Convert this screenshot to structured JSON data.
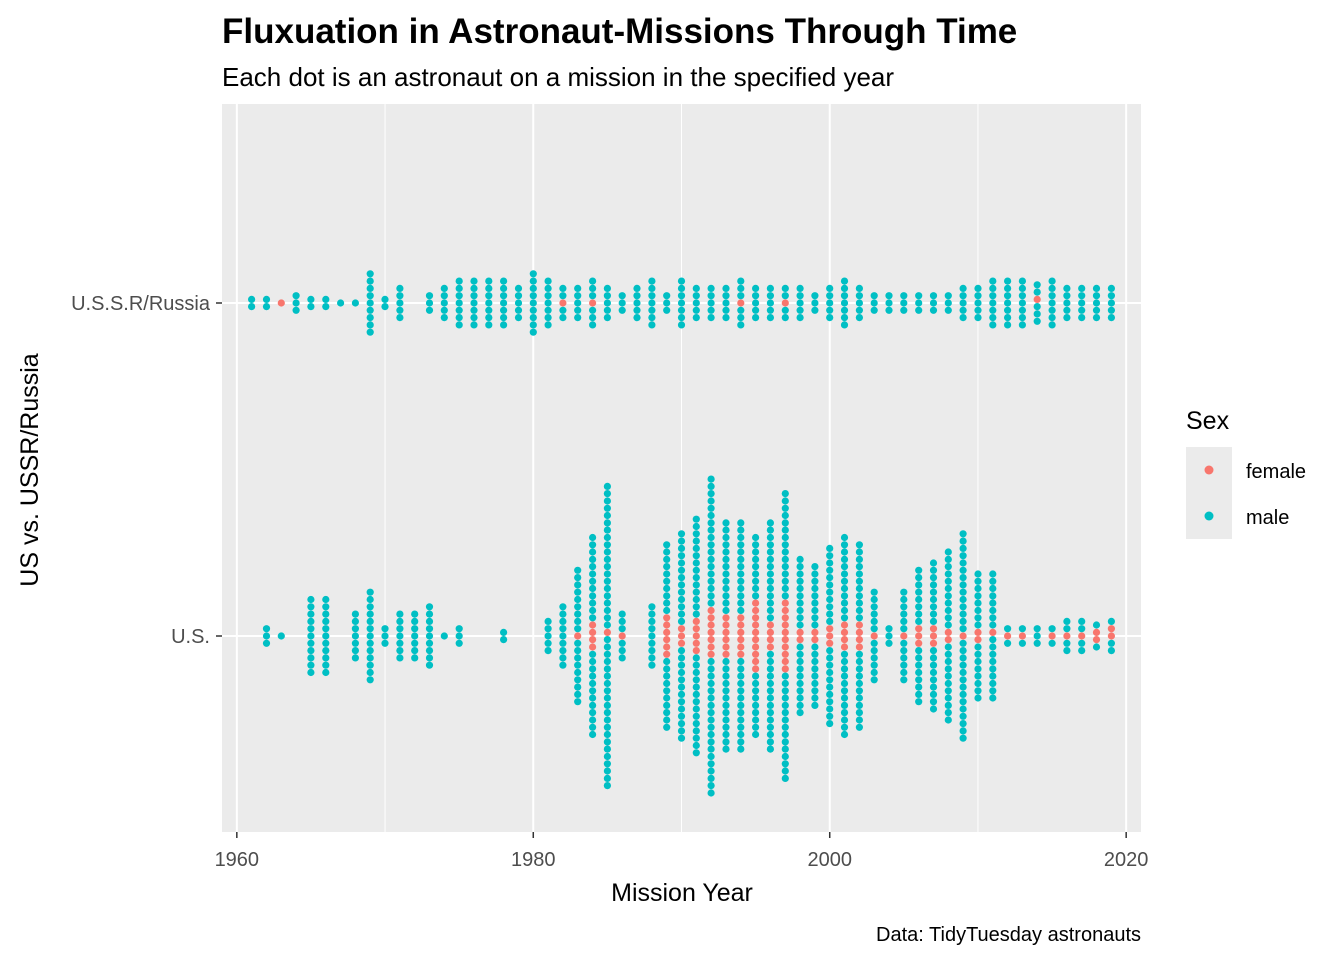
{
  "chart_data": {
    "type": "scatter",
    "title": "Fluxuation in Astronaut-Missions Through Time",
    "subtitle": "Each dot is an astronaut on a mission in the specified year",
    "xlabel": "Mission Year",
    "ylabel": "US vs. USSR/Russia",
    "caption": "Data: TidyTuesday astronauts",
    "xlim": [
      1959,
      2021
    ],
    "x_ticks": [
      "1960",
      "1980",
      "2000",
      "2020"
    ],
    "x_tick_values": [
      1960,
      1980,
      2000,
      2020
    ],
    "categories": [
      "U.S.",
      "U.S.S.R/Russia"
    ],
    "legend": {
      "title": "Sex",
      "placement": "right",
      "entries": [
        {
          "label": "female",
          "color": "#F8766D"
        },
        {
          "label": "male",
          "color": "#00BFC4"
        }
      ]
    },
    "colors": {
      "female": "#F8766D",
      "male": "#00BFC4",
      "panel": "#EBEBEB",
      "grid": "#FFFFFF"
    },
    "series": [
      {
        "country": "U.S.",
        "counts": [
          [
            1962,
            3,
            0
          ],
          [
            1963,
            1,
            0
          ],
          [
            1965,
            11,
            0
          ],
          [
            1966,
            11,
            0
          ],
          [
            1968,
            7,
            0
          ],
          [
            1969,
            13,
            0
          ],
          [
            1970,
            3,
            0
          ],
          [
            1971,
            7,
            0
          ],
          [
            1972,
            7,
            0
          ],
          [
            1973,
            9,
            0
          ],
          [
            1974,
            1,
            0
          ],
          [
            1975,
            3,
            0
          ],
          [
            1978,
            2,
            0
          ],
          [
            1981,
            5,
            0
          ],
          [
            1982,
            9,
            0
          ],
          [
            1983,
            19,
            1
          ],
          [
            1984,
            28,
            4
          ],
          [
            1985,
            42,
            1
          ],
          [
            1986,
            7,
            1
          ],
          [
            1988,
            9,
            0
          ],
          [
            1989,
            26,
            6
          ],
          [
            1990,
            29,
            3
          ],
          [
            1991,
            33,
            5
          ],
          [
            1992,
            44,
            7
          ],
          [
            1993,
            32,
            6
          ],
          [
            1994,
            32,
            6
          ],
          [
            1995,
            28,
            10
          ],
          [
            1996,
            32,
            4
          ],
          [
            1997,
            40,
            10
          ],
          [
            1998,
            22,
            2
          ],
          [
            1999,
            20,
            2
          ],
          [
            2000,
            25,
            3
          ],
          [
            2001,
            28,
            4
          ],
          [
            2002,
            26,
            4
          ],
          [
            2003,
            13,
            1
          ],
          [
            2004,
            3,
            0
          ],
          [
            2005,
            13,
            1
          ],
          [
            2006,
            19,
            3
          ],
          [
            2007,
            21,
            3
          ],
          [
            2008,
            24,
            2
          ],
          [
            2009,
            29,
            1
          ],
          [
            2010,
            18,
            2
          ],
          [
            2011,
            18,
            1
          ],
          [
            2012,
            3,
            1
          ],
          [
            2013,
            3,
            1
          ],
          [
            2014,
            3,
            0
          ],
          [
            2015,
            3,
            1
          ],
          [
            2016,
            5,
            1
          ],
          [
            2017,
            5,
            1
          ],
          [
            2018,
            4,
            2
          ],
          [
            2019,
            5,
            2
          ]
        ]
      },
      {
        "country": "U.S.S.R/Russia",
        "counts": [
          [
            1961,
            2,
            0
          ],
          [
            1962,
            2,
            0
          ],
          [
            1963,
            1,
            1
          ],
          [
            1964,
            3,
            0
          ],
          [
            1965,
            2,
            0
          ],
          [
            1966,
            2,
            0
          ],
          [
            1967,
            1,
            0
          ],
          [
            1968,
            1,
            0
          ],
          [
            1969,
            9,
            0
          ],
          [
            1970,
            2,
            0
          ],
          [
            1971,
            5,
            0
          ],
          [
            1973,
            3,
            0
          ],
          [
            1974,
            5,
            0
          ],
          [
            1975,
            7,
            0
          ],
          [
            1976,
            7,
            0
          ],
          [
            1977,
            7,
            0
          ],
          [
            1978,
            7,
            0
          ],
          [
            1979,
            5,
            0
          ],
          [
            1980,
            9,
            0
          ],
          [
            1981,
            7,
            0
          ],
          [
            1982,
            5,
            1
          ],
          [
            1983,
            5,
            0
          ],
          [
            1984,
            7,
            1
          ],
          [
            1985,
            5,
            0
          ],
          [
            1986,
            3,
            0
          ],
          [
            1987,
            5,
            0
          ],
          [
            1988,
            7,
            0
          ],
          [
            1989,
            3,
            0
          ],
          [
            1990,
            7,
            0
          ],
          [
            1991,
            5,
            0
          ],
          [
            1992,
            5,
            0
          ],
          [
            1993,
            5,
            0
          ],
          [
            1994,
            7,
            1
          ],
          [
            1995,
            5,
            0
          ],
          [
            1996,
            5,
            0
          ],
          [
            1997,
            5,
            1
          ],
          [
            1998,
            5,
            0
          ],
          [
            1999,
            3,
            0
          ],
          [
            2000,
            5,
            0
          ],
          [
            2001,
            7,
            0
          ],
          [
            2002,
            5,
            0
          ],
          [
            2003,
            3,
            0
          ],
          [
            2004,
            3,
            0
          ],
          [
            2005,
            3,
            0
          ],
          [
            2006,
            3,
            0
          ],
          [
            2007,
            3,
            0
          ],
          [
            2008,
            3,
            0
          ],
          [
            2009,
            5,
            0
          ],
          [
            2010,
            5,
            0
          ],
          [
            2011,
            7,
            0
          ],
          [
            2012,
            7,
            0
          ],
          [
            2013,
            7,
            0
          ],
          [
            2014,
            6,
            1
          ],
          [
            2015,
            7,
            0
          ],
          [
            2016,
            5,
            0
          ],
          [
            2017,
            5,
            0
          ],
          [
            2018,
            5,
            0
          ],
          [
            2019,
            5,
            0
          ]
        ]
      }
    ]
  }
}
